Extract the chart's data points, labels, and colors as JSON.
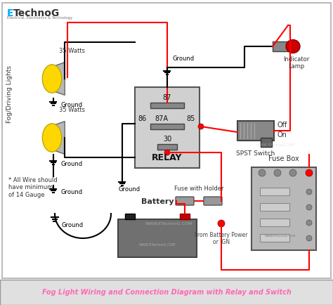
{
  "title": "Fog Light Wiring and Connection Diagram with Relay and Switch",
  "title_color": "#FF69B4",
  "title_bg": "#e8e8e8",
  "bg_color": "#ffffff",
  "border_color": "#cccccc",
  "logo_text": "ETechnoG",
  "logo_sub": "Electrical, Electronics & Technology",
  "watermark": "WWW.ETechnoG.COM",
  "relay_label": "RELAY",
  "relay_pins": [
    "87",
    "87A",
    "85",
    "86",
    "30"
  ],
  "note_text": "* All Wire should\nhave minimum\nof 14 Gauge"
}
